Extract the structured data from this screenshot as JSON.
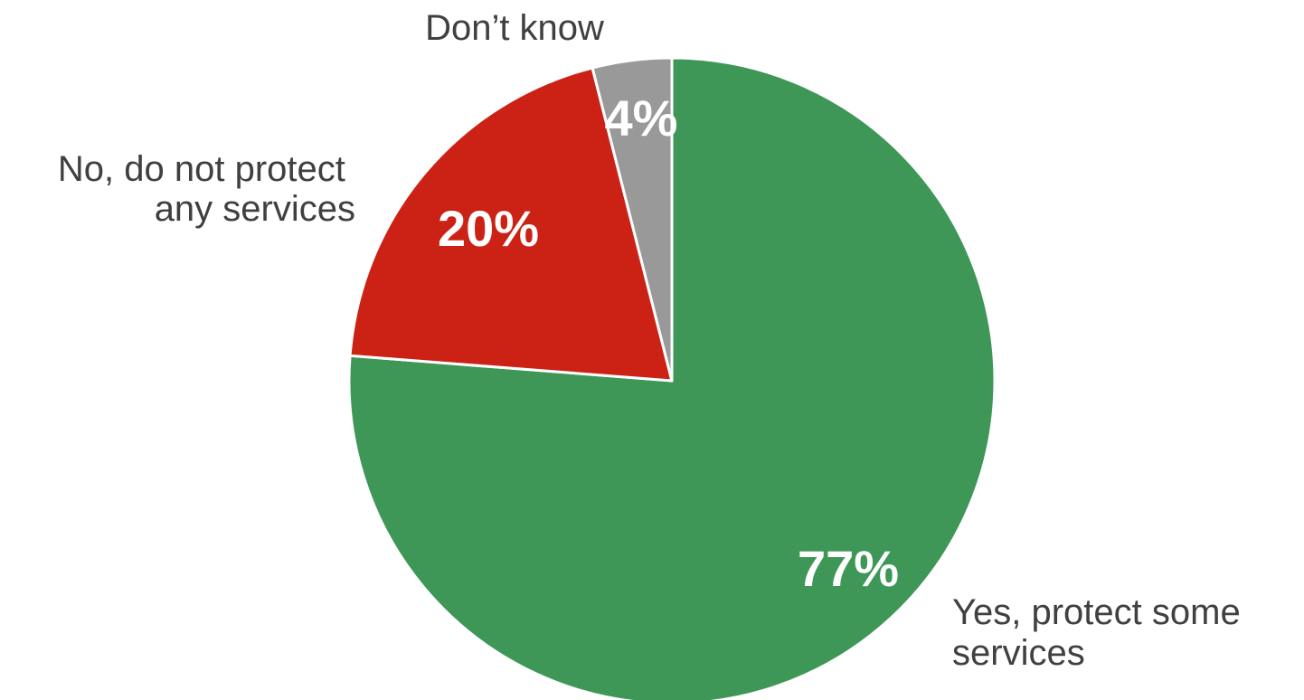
{
  "chart_data": {
    "type": "pie",
    "slices": [
      {
        "label_lines": [
          "Yes, protect some",
          "services"
        ],
        "value": 77,
        "value_label": "77%",
        "color": "#3e9757"
      },
      {
        "label_lines": [
          "No, do not protect",
          "any services"
        ],
        "value": 20,
        "value_label": "20%",
        "color": "#cc2216"
      },
      {
        "label_lines": [
          "Don’t know"
        ],
        "value": 4,
        "value_label": "4%",
        "color": "#999999"
      }
    ],
    "start_angle": "12 o'clock",
    "direction": "clockwise",
    "slice_border_color": "#ffffff",
    "legend": "none"
  }
}
